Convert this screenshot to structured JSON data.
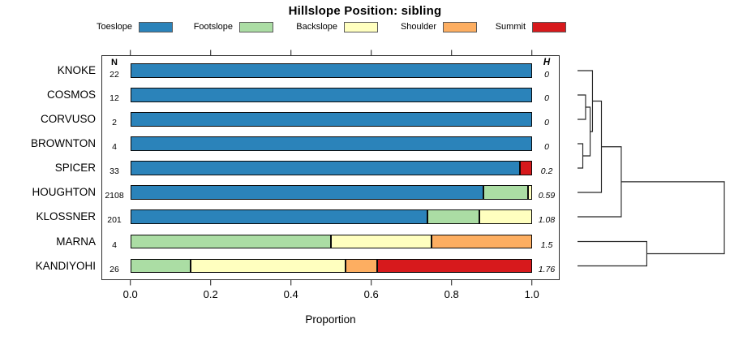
{
  "title": "Hillslope Position: sibling",
  "columns": {
    "n_header": "N",
    "h_header": "H"
  },
  "xaxis": {
    "label": "Proportion",
    "ticks": [
      "0.0",
      "0.2",
      "0.4",
      "0.6",
      "0.8",
      "1.0"
    ],
    "range": [
      0,
      1
    ]
  },
  "legend": [
    {
      "label": "Toeslope",
      "color": "#2b83ba"
    },
    {
      "label": "Footslope",
      "color": "#abdda4"
    },
    {
      "label": "Backslope",
      "color": "#ffffbf"
    },
    {
      "label": "Shoulder",
      "color": "#fdae61"
    },
    {
      "label": "Summit",
      "color": "#d7191c"
    }
  ],
  "chart_data": {
    "type": "bar",
    "orientation": "horizontal",
    "stacked": true,
    "title": "Hillslope Position: sibling",
    "xlabel": "Proportion",
    "xlim": [
      0,
      1
    ],
    "categories": [
      "KNOKE",
      "COSMOS",
      "CORVUSO",
      "BROWNTON",
      "SPICER",
      "HOUGHTON",
      "KLOSSNER",
      "MARNA",
      "KANDIYOHI"
    ],
    "n_values": [
      "22",
      "12",
      "2",
      "4",
      "33",
      "2108",
      "201",
      "4",
      "26"
    ],
    "h_values": [
      "0",
      "0",
      "0",
      "0",
      "0.2",
      "0.59",
      "1.08",
      "1.5",
      "1.76"
    ],
    "series": [
      {
        "name": "Toeslope",
        "values": [
          1,
          1,
          1,
          1,
          0.97,
          0.88,
          0.74,
          0,
          0
        ]
      },
      {
        "name": "Footslope",
        "values": [
          0,
          0,
          0,
          0,
          0,
          0.11,
          0.13,
          0.5,
          0.15
        ]
      },
      {
        "name": "Backslope",
        "values": [
          0,
          0,
          0,
          0,
          0,
          0.01,
          0.13,
          0.25,
          0.385
        ]
      },
      {
        "name": "Shoulder",
        "values": [
          0,
          0,
          0,
          0,
          0,
          0,
          0,
          0.25,
          0.08
        ]
      },
      {
        "name": "Summit",
        "values": [
          0,
          0,
          0,
          0,
          0.03,
          0,
          0,
          0,
          0.385
        ]
      }
    ]
  },
  "dendrogram": {
    "leaves": [
      "KNOKE",
      "COSMOS",
      "CORVUSO",
      "BROWNTON",
      "SPICER",
      "HOUGHTON",
      "KLOSSNER",
      "MARNA",
      "KANDIYOHI"
    ],
    "merges": [
      {
        "id": "M1",
        "a": "L1",
        "b": "L2",
        "h": 0.055
      },
      {
        "id": "M2",
        "a": "L3",
        "b": "L4",
        "h": 0.036
      },
      {
        "id": "M3",
        "a": "M1",
        "b": "M2",
        "h": 0.086
      },
      {
        "id": "M4",
        "a": "L0",
        "b": "M3",
        "h": 0.102
      },
      {
        "id": "M5",
        "a": "M4",
        "b": "L5",
        "h": 0.163
      },
      {
        "id": "M6",
        "a": "M5",
        "b": "L6",
        "h": 0.298
      },
      {
        "id": "M7",
        "a": "L7",
        "b": "L8",
        "h": 0.472
      },
      {
        "id": "M8",
        "a": "M6",
        "b": "M7",
        "h": 1.0
      }
    ]
  }
}
